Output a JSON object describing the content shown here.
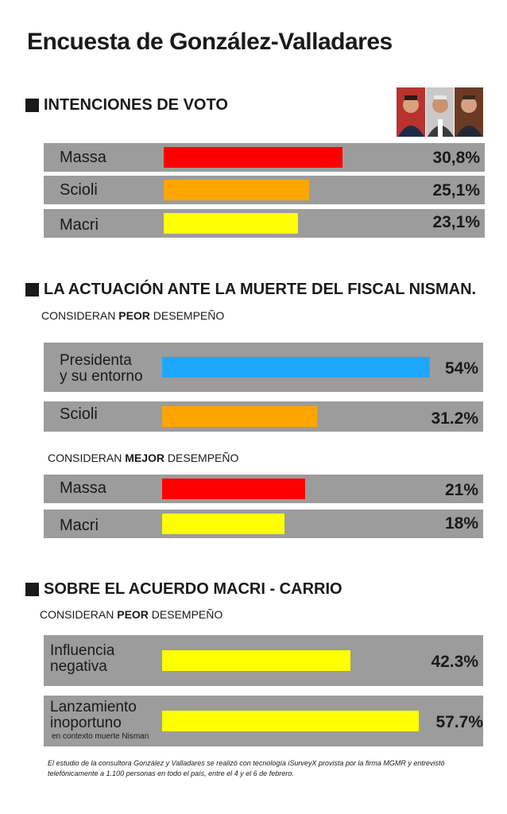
{
  "title": "Encuesta de González-Valladares",
  "colors": {
    "row_bg": "#9c9c9c",
    "red": "#ff0000",
    "orange": "#ffa500",
    "yellow": "#ffff00",
    "blue": "#1ea7ff"
  },
  "sections": {
    "s1": {
      "heading": "INTENCIONES DE VOTO"
    },
    "s2": {
      "heading": "LA ACTUACIÓN ANTE LA MUERTE DEL FISCAL NISMAN.",
      "sub1_pre": "CONSIDERAN ",
      "sub1_bold": "PEOR",
      "sub1_post": " DESEMPEÑO",
      "sub2_pre": "CONSIDERAN ",
      "sub2_bold": "MEJOR",
      "sub2_post": " DESEMPEÑO"
    },
    "s3": {
      "heading": "SOBRE EL ACUERDO MACRI - CARRIO",
      "sub1_pre": "CONSIDERAN ",
      "sub1_bold": "PEOR",
      "sub1_post": " DESEMPEÑO"
    }
  },
  "photos": [
    "candidate-photo-1",
    "candidate-photo-2",
    "candidate-photo-3"
  ],
  "chart_data": [
    {
      "type": "bar",
      "title": "INTENCIONES DE VOTO",
      "categories": [
        "Massa",
        "Scioli",
        "Macri"
      ],
      "values": [
        30.8,
        25.1,
        23.1
      ],
      "labels": [
        "30,8%",
        "25,1%",
        "23,1%"
      ],
      "colors": [
        "#ff0000",
        "#ffa500",
        "#ffff00"
      ]
    },
    {
      "type": "bar",
      "title": "CONSIDERAN PEOR DESEMPEÑO",
      "categories": [
        "Presidenta y su entorno",
        "Scioli"
      ],
      "category_lines": [
        [
          "Presidenta",
          "y su entorno"
        ],
        [
          "Scioli"
        ]
      ],
      "values": [
        54,
        31.2
      ],
      "labels": [
        "54%",
        "31.2%"
      ],
      "colors": [
        "#1ea7ff",
        "#ffa500"
      ]
    },
    {
      "type": "bar",
      "title": "CONSIDERAN MEJOR DESEMPEÑO",
      "categories": [
        "Massa",
        "Macri"
      ],
      "values": [
        21,
        18
      ],
      "labels": [
        "21%",
        "18%"
      ],
      "colors": [
        "#ff0000",
        "#ffff00"
      ]
    },
    {
      "type": "bar",
      "title": "CONSIDERAN PEOR DESEMPEÑO",
      "categories": [
        "Influencia negativa",
        "Lanzamiento inoportuno"
      ],
      "category_lines": [
        [
          "Influencia",
          "negativa"
        ],
        [
          "Lanzamiento",
          "inoportuno"
        ]
      ],
      "notes": [
        "",
        "en contexto muerte Nisman"
      ],
      "values": [
        42.3,
        57.7
      ],
      "labels": [
        "42.3%",
        "57.7%"
      ],
      "colors": [
        "#ffff00",
        "#ffff00"
      ]
    }
  ],
  "footnote": "El estudio de la consultora González y Valladares se realizó con tecnología iSurveyX provista por la firma MGMR  y entrevistó telefónicamente a 1.100 personas en todo el país, entre el 4 y el 6 de febrero."
}
